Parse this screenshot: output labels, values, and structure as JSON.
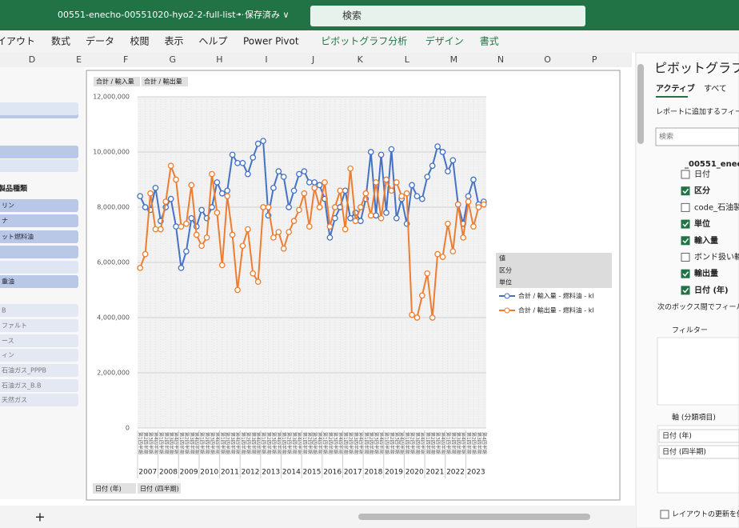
{
  "titlebar": {
    "filename": "00551-enecho-00551020-hyo2-2-full-list···",
    "status": "• 保存済み ∨",
    "search": "検索"
  },
  "ribbon_tabs": [
    "イアウト",
    "数式",
    "データ",
    "校閲",
    "表示",
    "ヘルプ",
    "Power Pivot",
    "ピボットグラフ分析",
    "デザイン",
    "書式"
  ],
  "columns": [
    "D",
    "E",
    "F",
    "G",
    "H",
    "I",
    "J",
    "K",
    "L",
    "M",
    "N",
    "O",
    "P"
  ],
  "slicer": {
    "header": "製品種類",
    "items": [
      "リン",
      "ナ",
      "ット燃料油",
      "重油",
      "B",
      "ファルト",
      "ース",
      "ィン",
      "石油ガス_PPPB",
      "石油ガス_B.B",
      "天然ガス"
    ]
  },
  "chart_buttons": {
    "top": [
      "合計 / 輸入量",
      "合計 / 輸出量"
    ],
    "bottom": [
      "日付 (年)",
      "日付 (四半期)"
    ],
    "legend_fields": [
      "値",
      "区分",
      "単位"
    ]
  },
  "chart_data": {
    "type": "line",
    "quarters": [
      "第1四半期",
      "第2四半期",
      "第3四半期",
      "第4四半期"
    ],
    "years": [
      "2007",
      "2008",
      "2009",
      "2010",
      "2011",
      "2012",
      "2013",
      "2014",
      "2015",
      "2016",
      "2017",
      "2018",
      "2019",
      "2020",
      "2021",
      "2022",
      "2023"
    ],
    "ylim": [
      0,
      12000000
    ],
    "yticks": [
      0,
      {
        "value": 2000000,
        "label": "2,000,000"
      },
      {
        "value": 4000000,
        "label": "4,000,000"
      },
      {
        "value": 6000000,
        "label": "6,000,000"
      },
      {
        "value": 8000000,
        "label": "8,000,000"
      },
      {
        "value": 10000000,
        "label": "10,000,000"
      },
      {
        "value": 12000000,
        "label": "12,000,000"
      }
    ],
    "grid": true,
    "series": [
      {
        "name": "合計 / 輸入量 - 燃料油 - kl",
        "color": "#4472c4",
        "values": [
          8400000,
          8000000,
          7900000,
          8700000,
          7500000,
          8000000,
          8300000,
          7300000,
          5800000,
          6400000,
          7600000,
          7300000,
          7900000,
          7600000,
          8000000,
          8900000,
          8500000,
          8600000,
          9900000,
          9600000,
          9600000,
          9200000,
          9800000,
          10300000,
          10400000,
          7700000,
          8700000,
          9300000,
          9100000,
          8000000,
          8600000,
          9200000,
          9300000,
          8900000,
          8900000,
          8800000,
          8300000,
          6900000,
          7600000,
          8000000,
          8600000,
          7600000,
          7800000,
          7500000,
          8300000,
          10000000,
          7700000,
          9900000,
          7800000,
          10100000,
          7600000,
          8300000,
          7400000,
          8800000,
          8400000,
          8300000,
          9100000,
          9500000,
          10200000,
          10000000,
          9300000,
          9700000,
          8100000,
          7400000,
          8400000,
          9000000,
          8100000,
          8200000
        ]
      },
      {
        "name": "合計 / 輸出量 - 燃料油 - kl",
        "color": "#ed7d31",
        "values": [
          5800000,
          6300000,
          8500000,
          7200000,
          7200000,
          8200000,
          9500000,
          9000000,
          7300000,
          7400000,
          8800000,
          7000000,
          6600000,
          6900000,
          9200000,
          7800000,
          5900000,
          8400000,
          7000000,
          5000000,
          6600000,
          7200000,
          5600000,
          5300000,
          8000000,
          8000000,
          6900000,
          7100000,
          6500000,
          7100000,
          7500000,
          7900000,
          8500000,
          7300000,
          8700000,
          8000000,
          8900000,
          7300000,
          8000000,
          8600000,
          7200000,
          9400000,
          7500000,
          8000000,
          8500000,
          7700000,
          8900000,
          7600000,
          9000000,
          8600000,
          8900000,
          8400000,
          8500000,
          4100000,
          4000000,
          4800000,
          5600000,
          4000000,
          6300000,
          6200000,
          7400000,
          6400000,
          8100000,
          6900000,
          8200000,
          7300000,
          8000000,
          8100000
        ]
      }
    ]
  },
  "pane": {
    "title": "ピボットグラフの",
    "tabs": [
      "アクティブ",
      "すべて"
    ],
    "prompt": "レポートに追加するフィール",
    "search": "検索",
    "table": "_00551_enec",
    "fields": [
      {
        "name": "日付",
        "checked": false
      },
      {
        "name": "区分",
        "checked": true
      },
      {
        "name": "code_石油製",
        "checked": false
      },
      {
        "name": "単位",
        "checked": true
      },
      {
        "name": "輸入量",
        "checked": true
      },
      {
        "name": "ボンド扱い輸入",
        "checked": false
      },
      {
        "name": "輸出量",
        "checked": true
      },
      {
        "name": "日付 (年)",
        "checked": true
      }
    ],
    "areas_prompt": "次のボックス間でフィールド",
    "filter": "フィルター",
    "axis": "軸 (分類項目)",
    "axis_items": [
      "日付 (年)",
      "日付 (四半期)"
    ],
    "defer": "レイアウトの更新を保"
  },
  "sheet_add": "+"
}
